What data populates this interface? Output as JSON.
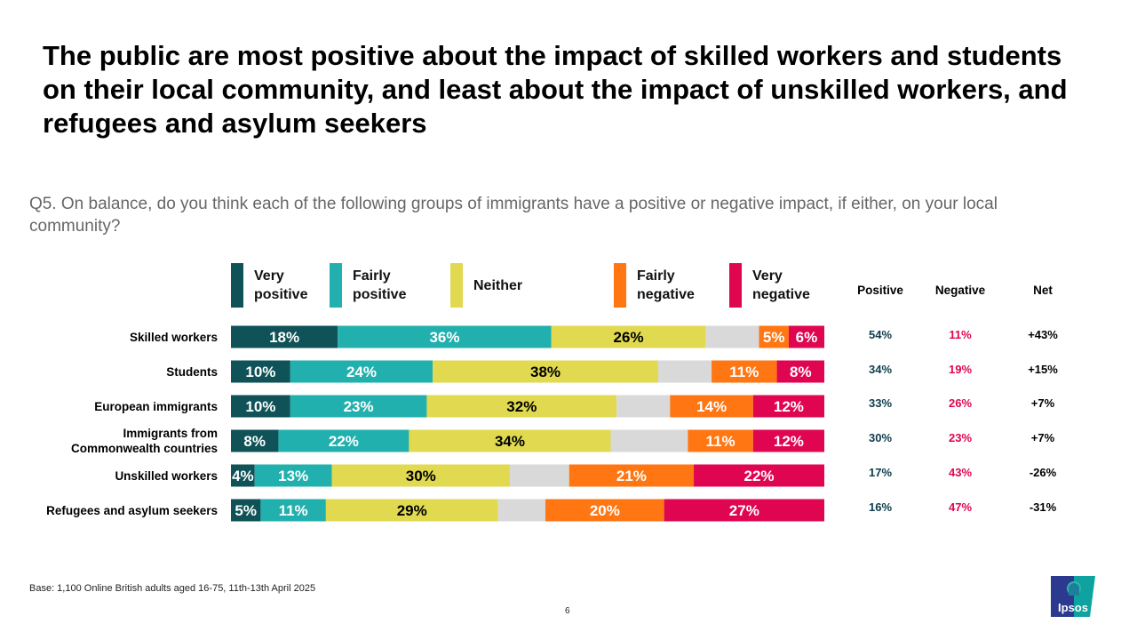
{
  "title": "The public are most positive about the impact of skilled workers and students on their local community, and least about the impact of unskilled workers, and refugees and asylum seekers",
  "question": "Q5. On balance, do you think each of the following groups of immigrants have a positive or negative impact, if either, on your local community?",
  "legend": [
    {
      "label": "Very positive",
      "color": "#0f5257"
    },
    {
      "label": "Fairly positive",
      "color": "#21b0ad"
    },
    {
      "label": "Neither",
      "color": "#e1d94f"
    },
    {
      "label": "Fairly negative",
      "color": "#ff7613"
    },
    {
      "label": "Very negative",
      "color": "#e00550"
    }
  ],
  "summary": {
    "headers": {
      "positive": "Positive",
      "negative": "Negative",
      "net": "Net"
    },
    "colors": {
      "positive": "#0f3d4d",
      "negative": "#e00550",
      "net": "#000000"
    },
    "rows": [
      {
        "positive": "54%",
        "negative": "11%",
        "net": "+43%"
      },
      {
        "positive": "34%",
        "negative": "19%",
        "net": "+15%"
      },
      {
        "positive": "33%",
        "negative": "26%",
        "net": "+7%"
      },
      {
        "positive": "30%",
        "negative": "23%",
        "net": "+7%"
      },
      {
        "positive": "17%",
        "negative": "43%",
        "net": "-26%"
      },
      {
        "positive": "16%",
        "negative": "47%",
        "net": "-31%"
      }
    ]
  },
  "chart_data": {
    "type": "bar",
    "orientation": "horizontal",
    "stacked": true,
    "categories": [
      "Skilled workers",
      "Students",
      "European immigrants",
      "Immigrants from Commonwealth countries",
      "Unskilled workers",
      "Refugees and asylum seekers"
    ],
    "series": [
      {
        "name": "Very positive",
        "color": "#0f5257",
        "label_color": "#ffffff",
        "values": [
          18,
          10,
          10,
          8,
          4,
          5
        ]
      },
      {
        "name": "Fairly positive",
        "color": "#21b0ad",
        "label_color": "#ffffff",
        "values": [
          36,
          24,
          23,
          22,
          13,
          11
        ]
      },
      {
        "name": "Neither",
        "color": "#e1d94f",
        "label_color": "#000000",
        "values": [
          26,
          38,
          32,
          34,
          30,
          29
        ]
      },
      {
        "color": "#d9d9d9",
        "values": [
          9,
          9,
          9,
          13,
          10,
          8
        ],
        "labelled": false
      },
      {
        "name": "Fairly negative",
        "color": "#ff7613",
        "label_color": "#ffffff",
        "values": [
          5,
          11,
          14,
          11,
          21,
          20
        ]
      },
      {
        "name": "Very negative",
        "color": "#e00550",
        "label_color": "#ffffff",
        "values": [
          6,
          8,
          12,
          12,
          22,
          27
        ]
      }
    ],
    "xlim": [
      0,
      100
    ],
    "value_suffix": "%",
    "grid": false,
    "legend_position": "top"
  },
  "footer": {
    "base": "Base: 1,100 Online British adults aged 16-75, 11th-13th April 2025",
    "page": "6",
    "logo_text": "Ipsos"
  }
}
